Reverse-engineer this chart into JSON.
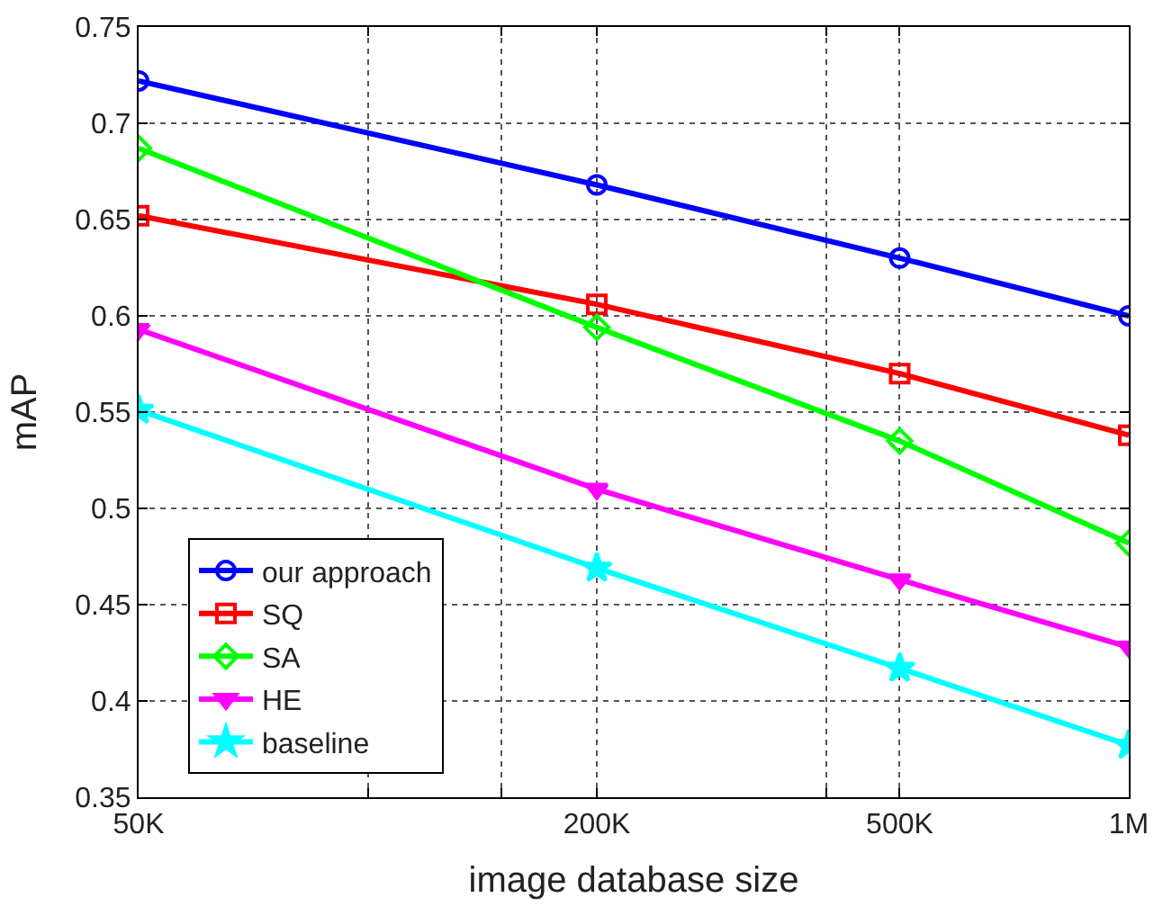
{
  "chart_data": {
    "type": "line",
    "xlabel": "image database size",
    "ylabel": "mAP",
    "x": [
      50000,
      200000,
      500000,
      1000000
    ],
    "series": [
      {
        "name": "our approach",
        "color": "#0000ff",
        "marker": "circle",
        "values": [
          0.722,
          0.668,
          0.63,
          0.6
        ]
      },
      {
        "name": "SQ",
        "color": "#ff0000",
        "marker": "square",
        "values": [
          0.652,
          0.606,
          0.57,
          0.538
        ]
      },
      {
        "name": "SA",
        "color": "#00ff00",
        "marker": "diamond",
        "values": [
          0.687,
          0.594,
          0.535,
          0.482
        ]
      },
      {
        "name": "HE",
        "color": "#ff00ff",
        "marker": "triangle",
        "values": [
          0.593,
          0.51,
          0.463,
          0.428
        ]
      },
      {
        "name": "baseline",
        "color": "#00ffff",
        "marker": "star",
        "values": [
          0.551,
          0.469,
          0.417,
          0.377
        ]
      }
    ],
    "log": "x",
    "xlim": [
      50000,
      1000000
    ],
    "xticks": [
      {
        "value": 50000,
        "label": "50K"
      },
      {
        "value": 100000,
        "label": null
      },
      {
        "value": 150000,
        "label": null
      },
      {
        "value": 200000,
        "label": "200K"
      },
      {
        "value": 400000,
        "label": null
      },
      {
        "value": 500000,
        "label": "500K"
      },
      {
        "value": 1000000,
        "label": "1M"
      }
    ],
    "ylim": [
      0.35,
      0.75
    ],
    "yticks": [
      0.35,
      0.4,
      0.45,
      0.5,
      0.55,
      0.6,
      0.65,
      0.7,
      0.75
    ],
    "grid": true,
    "legend": "bottom left",
    "line_style": "solid"
  }
}
